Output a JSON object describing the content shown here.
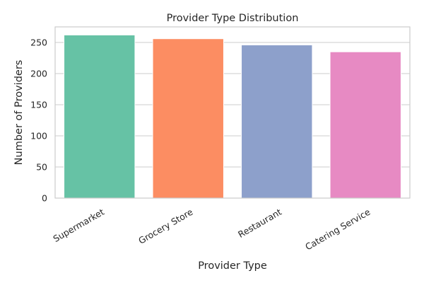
{
  "chart_data": {
    "type": "bar",
    "title": "Provider Type Distribution",
    "xlabel": "Provider Type",
    "ylabel": "Number of Providers",
    "categories": [
      "Supermarket",
      "Grocery Store",
      "Restaurant",
      "Catering Service"
    ],
    "values": [
      262,
      256,
      246,
      235
    ],
    "colors": [
      "#66c2a5",
      "#fc8d62",
      "#8da0cb",
      "#e78ac3"
    ],
    "ylim": [
      0,
      275
    ],
    "yticks": [
      0,
      50,
      100,
      150,
      200,
      250
    ],
    "grid": true,
    "legend": "none"
  }
}
